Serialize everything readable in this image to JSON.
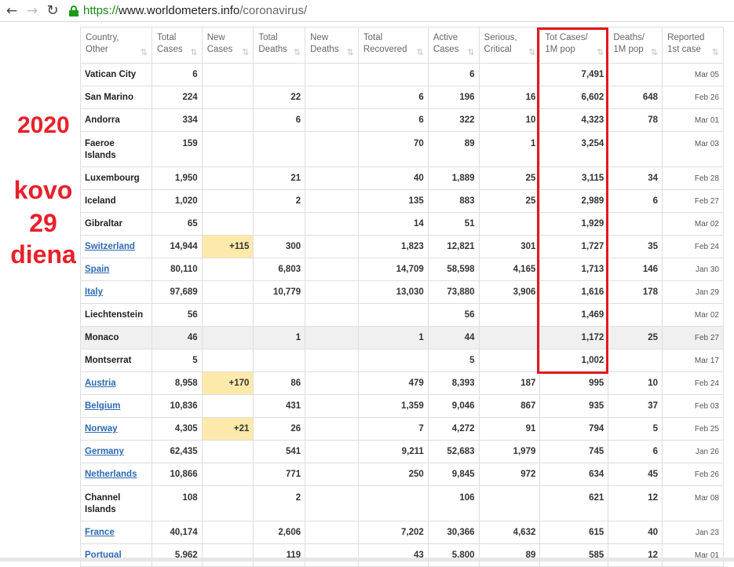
{
  "browser": {
    "back_icon": "←",
    "forward_icon": "→",
    "reload_icon": "↻",
    "url_scheme": "https://",
    "url_host": "www.worldometers.info",
    "url_path": "/coronavirus/"
  },
  "annotation": {
    "year": "2020",
    "line1": "kovo",
    "line2": "29",
    "line3": "diena",
    "color": "#e8202a"
  },
  "table": {
    "columns": [
      {
        "line1": "Country,",
        "line2": "Other"
      },
      {
        "line1": "Total",
        "line2": "Cases"
      },
      {
        "line1": "New",
        "line2": "Cases"
      },
      {
        "line1": "Total",
        "line2": "Deaths"
      },
      {
        "line1": "New",
        "line2": "Deaths"
      },
      {
        "line1": "Total",
        "line2": "Recovered"
      },
      {
        "line1": "Active",
        "line2": "Cases"
      },
      {
        "line1": "Serious,",
        "line2": "Critical"
      },
      {
        "line1": "Tot Cases/",
        "line2": "1M pop"
      },
      {
        "line1": "Deaths/",
        "line2": "1M pop"
      },
      {
        "line1": "Reported",
        "line2": "1st case"
      }
    ],
    "rows": [
      {
        "country": "Vatican City",
        "link": false,
        "tall": false,
        "total_cases": "6",
        "new_cases": "",
        "total_deaths": "",
        "new_deaths": "",
        "total_recovered": "",
        "active_cases": "6",
        "serious": "",
        "tot_per_m": "7,491",
        "deaths_per_m": "",
        "reported": "Mar 05"
      },
      {
        "country": "San Marino",
        "link": false,
        "tall": false,
        "total_cases": "224",
        "new_cases": "",
        "total_deaths": "22",
        "new_deaths": "",
        "total_recovered": "6",
        "active_cases": "196",
        "serious": "16",
        "tot_per_m": "6,602",
        "deaths_per_m": "648",
        "reported": "Feb 26"
      },
      {
        "country": "Andorra",
        "link": false,
        "tall": false,
        "total_cases": "334",
        "new_cases": "",
        "total_deaths": "6",
        "new_deaths": "",
        "total_recovered": "6",
        "active_cases": "322",
        "serious": "10",
        "tot_per_m": "4,323",
        "deaths_per_m": "78",
        "reported": "Mar 01"
      },
      {
        "country": "Faeroe Islands",
        "link": false,
        "tall": true,
        "total_cases": "159",
        "new_cases": "",
        "total_deaths": "",
        "new_deaths": "",
        "total_recovered": "70",
        "active_cases": "89",
        "serious": "1",
        "tot_per_m": "3,254",
        "deaths_per_m": "",
        "reported": "Mar 03"
      },
      {
        "country": "Luxembourg",
        "link": false,
        "tall": false,
        "total_cases": "1,950",
        "new_cases": "",
        "total_deaths": "21",
        "new_deaths": "",
        "total_recovered": "40",
        "active_cases": "1,889",
        "serious": "25",
        "tot_per_m": "3,115",
        "deaths_per_m": "34",
        "reported": "Feb 28"
      },
      {
        "country": "Iceland",
        "link": false,
        "tall": false,
        "total_cases": "1,020",
        "new_cases": "",
        "total_deaths": "2",
        "new_deaths": "",
        "total_recovered": "135",
        "active_cases": "883",
        "serious": "25",
        "tot_per_m": "2,989",
        "deaths_per_m": "6",
        "reported": "Feb 27"
      },
      {
        "country": "Gibraltar",
        "link": false,
        "tall": false,
        "total_cases": "65",
        "new_cases": "",
        "total_deaths": "",
        "new_deaths": "",
        "total_recovered": "14",
        "active_cases": "51",
        "serious": "",
        "tot_per_m": "1,929",
        "deaths_per_m": "",
        "reported": "Mar 02"
      },
      {
        "country": "Switzerland",
        "link": true,
        "tall": false,
        "total_cases": "14,944",
        "new_cases": "+115",
        "total_deaths": "300",
        "new_deaths": "",
        "total_recovered": "1,823",
        "active_cases": "12,821",
        "serious": "301",
        "tot_per_m": "1,727",
        "deaths_per_m": "35",
        "reported": "Feb 24"
      },
      {
        "country": "Spain",
        "link": true,
        "tall": false,
        "total_cases": "80,110",
        "new_cases": "",
        "total_deaths": "6,803",
        "new_deaths": "",
        "total_recovered": "14,709",
        "active_cases": "58,598",
        "serious": "4,165",
        "tot_per_m": "1,713",
        "deaths_per_m": "146",
        "reported": "Jan 30"
      },
      {
        "country": "Italy",
        "link": true,
        "tall": false,
        "total_cases": "97,689",
        "new_cases": "",
        "total_deaths": "10,779",
        "new_deaths": "",
        "total_recovered": "13,030",
        "active_cases": "73,880",
        "serious": "3,906",
        "tot_per_m": "1,616",
        "deaths_per_m": "178",
        "reported": "Jan 29"
      },
      {
        "country": "Liechtenstein",
        "link": false,
        "tall": false,
        "total_cases": "56",
        "new_cases": "",
        "total_deaths": "",
        "new_deaths": "",
        "total_recovered": "",
        "active_cases": "56",
        "serious": "",
        "tot_per_m": "1,469",
        "deaths_per_m": "",
        "reported": "Mar 02"
      },
      {
        "country": "Monaco",
        "link": false,
        "tall": false,
        "shaded": true,
        "total_cases": "46",
        "new_cases": "",
        "total_deaths": "1",
        "new_deaths": "",
        "total_recovered": "1",
        "active_cases": "44",
        "serious": "",
        "tot_per_m": "1,172",
        "deaths_per_m": "25",
        "reported": "Feb 27"
      },
      {
        "country": "Montserrat",
        "link": false,
        "tall": false,
        "total_cases": "5",
        "new_cases": "",
        "total_deaths": "",
        "new_deaths": "",
        "total_recovered": "",
        "active_cases": "5",
        "serious": "",
        "tot_per_m": "1,002",
        "deaths_per_m": "",
        "reported": "Mar 17"
      },
      {
        "country": "Austria",
        "link": true,
        "tall": false,
        "total_cases": "8,958",
        "new_cases": "+170",
        "total_deaths": "86",
        "new_deaths": "",
        "total_recovered": "479",
        "active_cases": "8,393",
        "serious": "187",
        "tot_per_m": "995",
        "deaths_per_m": "10",
        "reported": "Feb 24"
      },
      {
        "country": "Belgium",
        "link": true,
        "tall": false,
        "total_cases": "10,836",
        "new_cases": "",
        "total_deaths": "431",
        "new_deaths": "",
        "total_recovered": "1,359",
        "active_cases": "9,046",
        "serious": "867",
        "tot_per_m": "935",
        "deaths_per_m": "37",
        "reported": "Feb 03"
      },
      {
        "country": "Norway",
        "link": true,
        "tall": false,
        "total_cases": "4,305",
        "new_cases": "+21",
        "total_deaths": "26",
        "new_deaths": "",
        "total_recovered": "7",
        "active_cases": "4,272",
        "serious": "91",
        "tot_per_m": "794",
        "deaths_per_m": "5",
        "reported": "Feb 25"
      },
      {
        "country": "Germany",
        "link": true,
        "tall": false,
        "total_cases": "62,435",
        "new_cases": "",
        "total_deaths": "541",
        "new_deaths": "",
        "total_recovered": "9,211",
        "active_cases": "52,683",
        "serious": "1,979",
        "tot_per_m": "745",
        "deaths_per_m": "6",
        "reported": "Jan 26"
      },
      {
        "country": "Netherlands",
        "link": true,
        "tall": false,
        "total_cases": "10,866",
        "new_cases": "",
        "total_deaths": "771",
        "new_deaths": "",
        "total_recovered": "250",
        "active_cases": "9,845",
        "serious": "972",
        "tot_per_m": "634",
        "deaths_per_m": "45",
        "reported": "Feb 26"
      },
      {
        "country": "Channel Islands",
        "link": false,
        "tall": true,
        "total_cases": "108",
        "new_cases": "",
        "total_deaths": "2",
        "new_deaths": "",
        "total_recovered": "",
        "active_cases": "106",
        "serious": "",
        "tot_per_m": "621",
        "deaths_per_m": "12",
        "reported": "Mar 08"
      },
      {
        "country": "France",
        "link": true,
        "tall": false,
        "total_cases": "40,174",
        "new_cases": "",
        "total_deaths": "2,606",
        "new_deaths": "",
        "total_recovered": "7,202",
        "active_cases": "30,366",
        "serious": "4,632",
        "tot_per_m": "615",
        "deaths_per_m": "40",
        "reported": "Jan 23"
      },
      {
        "country": "Portugal",
        "link": true,
        "tall": false,
        "total_cases": "5,962",
        "new_cases": "",
        "total_deaths": "119",
        "new_deaths": "",
        "total_recovered": "43",
        "active_cases": "5,800",
        "serious": "89",
        "tot_per_m": "585",
        "deaths_per_m": "12",
        "reported": "Mar 01"
      }
    ]
  },
  "colors": {
    "highlight_border": "#e1191f",
    "new_cases_bg": "#fde9a9",
    "link": "#2d6ab3",
    "url_scheme": "#1a8a1a"
  }
}
